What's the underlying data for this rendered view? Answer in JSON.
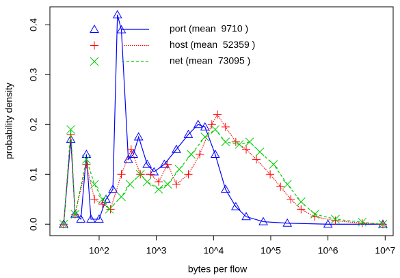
{
  "chart_data": {
    "type": "line",
    "xlabel": "bytes per flow",
    "ylabel": "probability density",
    "xscale": "log",
    "xlim": [
      13.8,
      13800000
    ],
    "ylim": [
      -0.023,
      0.436
    ],
    "xticks": [
      {
        "value": 100,
        "label": "10^2"
      },
      {
        "value": 1000,
        "label": "10^3"
      },
      {
        "value": 10000,
        "label": "10^4"
      },
      {
        "value": 100000,
        "label": "10^5"
      },
      {
        "value": 1000000,
        "label": "10^6"
      },
      {
        "value": 10000000,
        "label": "10^7"
      }
    ],
    "yticks": [
      {
        "value": 0,
        "label": "0.0"
      },
      0.1,
      0.2,
      0.3,
      0.4
    ],
    "legend": "top-left",
    "series": [
      {
        "name": "port (mean  9710 )",
        "color": "#0000ff",
        "linestyle": "solid",
        "marker": "triangle",
        "x": [
          24,
          32,
          38,
          48,
          60,
          72,
          100,
          132,
          174,
          209,
          245,
          324,
          398,
          490,
          692,
          912,
          1380,
          2240,
          3630,
          5370,
          7080,
          10700,
          16200,
          24500,
          37200,
          74100,
          195000,
          1000000,
          9120000
        ],
        "values": [
          0,
          0.17,
          0.02,
          0.01,
          0.14,
          0.01,
          0.01,
          0.05,
          0.07,
          0.42,
          0.39,
          0.13,
          0.14,
          0.175,
          0.12,
          0.105,
          0.12,
          0.15,
          0.18,
          0.2,
          0.195,
          0.14,
          0.07,
          0.035,
          0.015,
          0.005,
          0.002,
          0,
          0
        ]
      },
      {
        "name": "host (mean  52359 )",
        "color": "#ff0000",
        "linestyle": "dotted",
        "marker": "plus",
        "x": [
          24,
          32,
          38,
          60,
          83,
          115,
          158,
          245,
          363,
          525,
          794,
          1100,
          1580,
          2240,
          3630,
          5750,
          9330,
          11700,
          16200,
          24500,
          37200,
          56200,
          97700,
          148000,
          224000,
          339000,
          589000,
          1350000,
          3980000,
          9120000
        ],
        "values": [
          0,
          0.18,
          0.02,
          0.12,
          0.05,
          0.04,
          0.03,
          0.1,
          0.15,
          0.1,
          0.1,
          0.085,
          0.12,
          0.08,
          0.1,
          0.14,
          0.2,
          0.22,
          0.195,
          0.165,
          0.15,
          0.13,
          0.1,
          0.075,
          0.05,
          0.03,
          0.015,
          0.007,
          0.002,
          0
        ]
      },
      {
        "name": "net (mean  73095 )",
        "color": "#00cd00",
        "linestyle": "dashed",
        "marker": "cross",
        "x": [
          24,
          32,
          38,
          60,
          83,
          115,
          151,
          245,
          347,
          525,
          692,
          1100,
          1580,
          2510,
          4070,
          7080,
          10700,
          16200,
          28200,
          42700,
          64600,
          112000,
          195000,
          339000,
          589000,
          1350000,
          3980000,
          9120000
        ],
        "values": [
          0,
          0.19,
          0.02,
          0.13,
          0.08,
          0.05,
          0.03,
          0.055,
          0.08,
          0.1,
          0.085,
          0.07,
          0.08,
          0.11,
          0.14,
          0.175,
          0.19,
          0.165,
          0.16,
          0.165,
          0.145,
          0.12,
          0.08,
          0.045,
          0.02,
          0.01,
          0.004,
          0
        ]
      }
    ]
  }
}
